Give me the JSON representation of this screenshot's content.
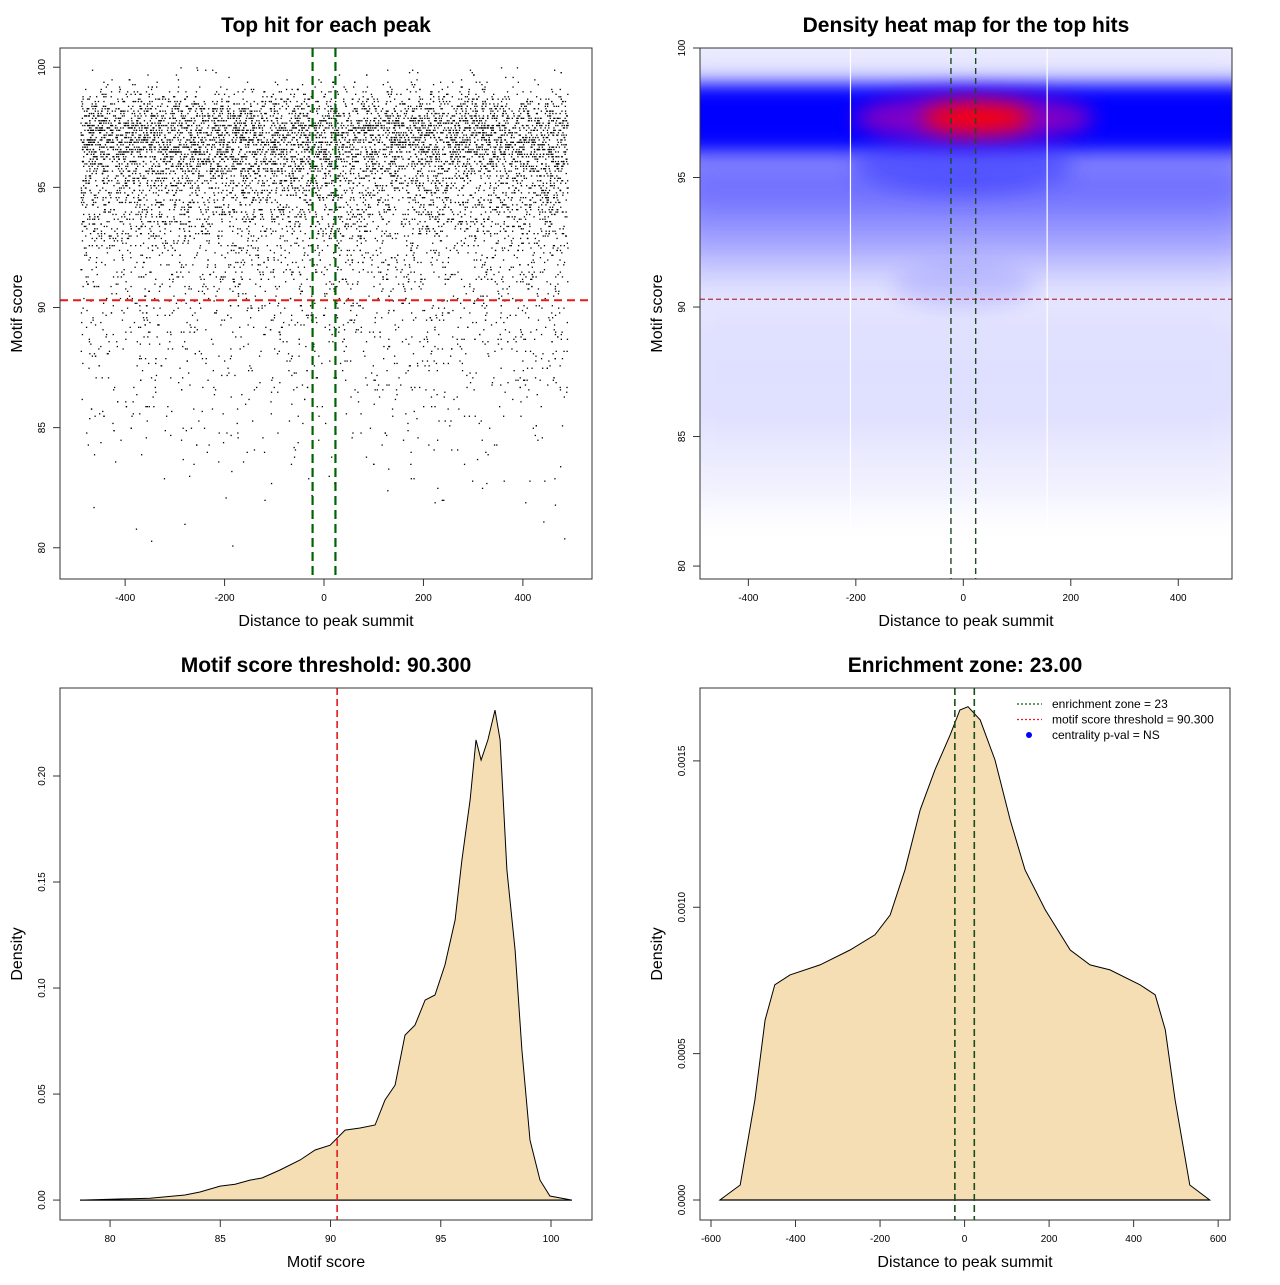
{
  "chart_data": [
    {
      "type": "scatter",
      "title": "Top hit for each peak",
      "xlabel": "Distance to peak summit",
      "ylabel": "Motif score",
      "xlim": [
        -531,
        539
      ],
      "ylim": [
        78.7,
        100.8
      ],
      "x_range": [
        -490,
        490
      ],
      "xticks": [
        -400,
        -200,
        0,
        200,
        400
      ],
      "xtick_labels": [
        "-400",
        "-200",
        "0",
        "200",
        "400"
      ],
      "yticks": [
        80,
        85,
        90,
        95,
        100
      ],
      "ytick_labels": [
        "80",
        "85",
        "90",
        "95",
        "100"
      ],
      "vlines": [
        -23,
        23
      ],
      "hline": 90.3,
      "point_color": "#000000",
      "vline_color": "#006400",
      "hline_color": "#e41a1c",
      "grid": false
    },
    {
      "type": "heatmap",
      "title": "Density heat map for the top hits",
      "xlabel": "Distance to peak summit",
      "ylabel": "Motif score",
      "xlim": [
        -490,
        500
      ],
      "ylim": [
        79.5,
        100
      ],
      "xticks": [
        -400,
        -200,
        0,
        200,
        400
      ],
      "xtick_labels": [
        "-400",
        "-200",
        "0",
        "200",
        "400"
      ],
      "yticks": [
        80,
        85,
        90,
        95,
        100
      ],
      "ytick_labels": [
        "80",
        "85",
        "90",
        "95",
        "100"
      ],
      "vlines": [
        -23,
        23
      ],
      "hline": 90.3,
      "colorscale": [
        "#ffffff",
        "#0000ff",
        "#ff0000"
      ],
      "peak_density_at": {
        "x": 20,
        "y": 97.3
      },
      "vline_color": "#1a4d1a",
      "hline_color": "#b03040",
      "grid": false
    },
    {
      "type": "area",
      "title": "Motif score threshold: 90.300",
      "xlabel": "Motif score",
      "ylabel": "Density",
      "xlim": [
        77.73,
        101.86
      ],
      "ylim": [
        -0.0094,
        0.2415
      ],
      "xticks": [
        80,
        85,
        90,
        95,
        100
      ],
      "xtick_labels": [
        "80",
        "85",
        "90",
        "95",
        "100"
      ],
      "yticks": [
        0,
        0.05,
        0.1,
        0.15,
        0.2
      ],
      "ytick_labels": [
        "0.00",
        "0.05",
        "0.10",
        "0.15",
        "0.20"
      ],
      "vline": 90.3,
      "vline_color": "#e41a1c",
      "fill_color": "#f5deb3",
      "x": [
        78.64,
        81.81,
        83.4,
        84.08,
        84.99,
        85.67,
        86.35,
        86.89,
        87.71,
        88.62,
        89.3,
        89.98,
        90.66,
        91.34,
        92.02,
        92.47,
        92.93,
        93.38,
        93.83,
        94.29,
        94.74,
        95.19,
        95.65,
        95.96,
        96.33,
        96.6,
        96.83,
        97.14,
        97.46,
        97.69,
        98.0,
        98.37,
        98.68,
        99.05,
        99.5,
        99.95,
        100.95
      ],
      "y": [
        0,
        0.0009,
        0.0024,
        0.0038,
        0.0066,
        0.0075,
        0.0094,
        0.0104,
        0.0142,
        0.0189,
        0.0236,
        0.0259,
        0.033,
        0.034,
        0.0354,
        0.0472,
        0.0542,
        0.0778,
        0.0825,
        0.0943,
        0.0967,
        0.1108,
        0.1321,
        0.1604,
        0.1887,
        0.217,
        0.2075,
        0.217,
        0.2311,
        0.217,
        0.1557,
        0.1179,
        0.0708,
        0.0283,
        0.0094,
        0.0019,
        0
      ],
      "grid": false
    },
    {
      "type": "area",
      "title": "Enrichment zone: 23.00",
      "xlabel": "Distance to peak summit",
      "ylabel": "Density",
      "xlim": [
        -626,
        628
      ],
      "ylim": [
        -6.83e-05,
        0.001749
      ],
      "xticks": [
        -600,
        -400,
        -200,
        0,
        200,
        400,
        600
      ],
      "xtick_labels": [
        "-600",
        "-400",
        "-200",
        "0",
        "200",
        "400",
        "600"
      ],
      "yticks": [
        0,
        0.0005,
        0.001,
        0.0015
      ],
      "ytick_labels": [
        "0.0000",
        "0.0005",
        "0.0010",
        "0.0015"
      ],
      "vlines": [
        -23,
        23
      ],
      "vline_color": "#1a4d1a",
      "fill_color": "#f5deb3",
      "x": [
        -579,
        -531,
        -496,
        -472,
        -449,
        -413,
        -342,
        -271,
        -212,
        -176,
        -141,
        -105,
        -70,
        -34,
        -11,
        8,
        37,
        72,
        108,
        143,
        191,
        250,
        297,
        344,
        415,
        451,
        475,
        498,
        533,
        580
      ],
      "y": [
        0,
        5.13e-05,
        0.000342,
        0.000615,
        0.000735,
        0.000769,
        0.000803,
        0.000854,
        0.000906,
        0.000974,
        0.001128,
        0.001333,
        0.00147,
        0.001589,
        0.001674,
        0.001685,
        0.00164,
        0.001503,
        0.001298,
        0.001128,
        0.000991,
        0.000854,
        0.000803,
        0.000786,
        0.000735,
        0.000701,
        0.000581,
        0.000342,
        5.13e-05,
        0
      ],
      "legend_position": "top-right",
      "legend": [
        {
          "label": "enrichment zone = 23",
          "color": "#006400",
          "style": "dotted-line"
        },
        {
          "label": "motif score threshold = 90.300",
          "color": "#e41a1c",
          "style": "dotted-line"
        },
        {
          "label": "centrality p-val = NS",
          "color": "#0000ff",
          "style": "point"
        }
      ],
      "grid": false
    }
  ]
}
